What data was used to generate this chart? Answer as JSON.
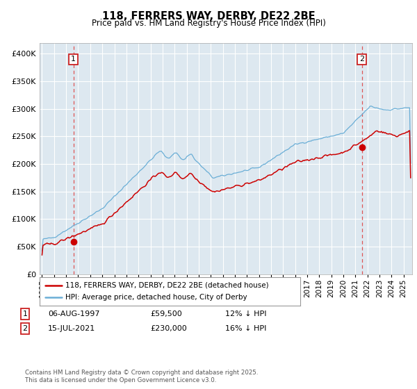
{
  "title": "118, FERRERS WAY, DERBY, DE22 2BE",
  "subtitle": "Price paid vs. HM Land Registry's House Price Index (HPI)",
  "legend_line1": "118, FERRERS WAY, DERBY, DE22 2BE (detached house)",
  "legend_line2": "HPI: Average price, detached house, City of Derby",
  "purchase1_date": "06-AUG-1997",
  "purchase1_price": "£59,500",
  "purchase1_hpi": "12% ↓ HPI",
  "purchase1_year": 1997.6,
  "purchase1_value": 59500,
  "purchase2_date": "15-JUL-2021",
  "purchase2_price": "£230,000",
  "purchase2_hpi": "16% ↓ HPI",
  "purchase2_year": 2021.54,
  "purchase2_value": 230000,
  "footer": "Contains HM Land Registry data © Crown copyright and database right 2025.\nThis data is licensed under the Open Government Licence v3.0.",
  "hpi_color": "#6aaed6",
  "price_color": "#cc0000",
  "marker_color": "#cc0000",
  "bg_color": "#dde8f0",
  "grid_color": "#ffffff",
  "vline_color": "#dd5555",
  "ylim": [
    0,
    420000
  ],
  "xlim_start": 1994.8,
  "xlim_end": 2025.7
}
